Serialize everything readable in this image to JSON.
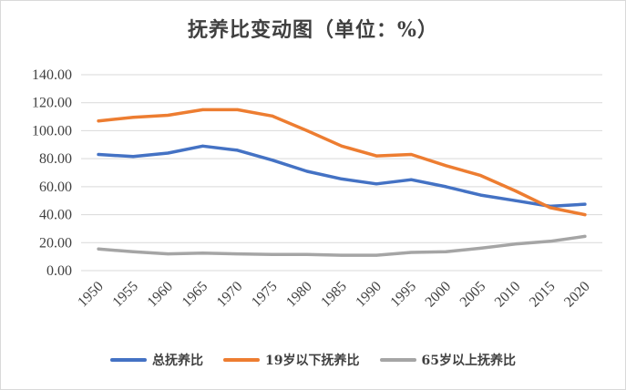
{
  "chart_data": {
    "type": "line",
    "title": "抚养比变动图（单位：%）",
    "xlabel": "",
    "ylabel": "",
    "categories": [
      "1950",
      "1955",
      "1960",
      "1965",
      "1970",
      "1975",
      "1980",
      "1985",
      "1990",
      "1995",
      "2000",
      "2005",
      "2010",
      "2015",
      "2020"
    ],
    "ylim": [
      0,
      140
    ],
    "yticks": [
      "0.00",
      "20.00",
      "40.00",
      "60.00",
      "80.00",
      "100.00",
      "120.00",
      "140.00"
    ],
    "grid": true,
    "legend_position": "bottom",
    "series": [
      {
        "name": "总抚养比",
        "color": "#4472c4",
        "values": [
          83,
          81.5,
          84,
          89,
          86,
          79,
          71,
          65.5,
          62,
          65,
          60,
          54,
          50,
          46,
          47.5
        ]
      },
      {
        "name": "19岁以下抚养比",
        "color": "#ed7d31",
        "values": [
          107,
          109.5,
          111,
          115,
          115,
          110.5,
          100,
          89,
          82,
          83,
          75,
          68,
          57,
          45,
          40
        ]
      },
      {
        "name": "65岁以上抚养比",
        "color": "#a5a5a5",
        "values": [
          15.5,
          13.5,
          12,
          12.5,
          12,
          11.5,
          11.5,
          11,
          11,
          13,
          13.5,
          16,
          19,
          21,
          24.5
        ]
      }
    ]
  }
}
